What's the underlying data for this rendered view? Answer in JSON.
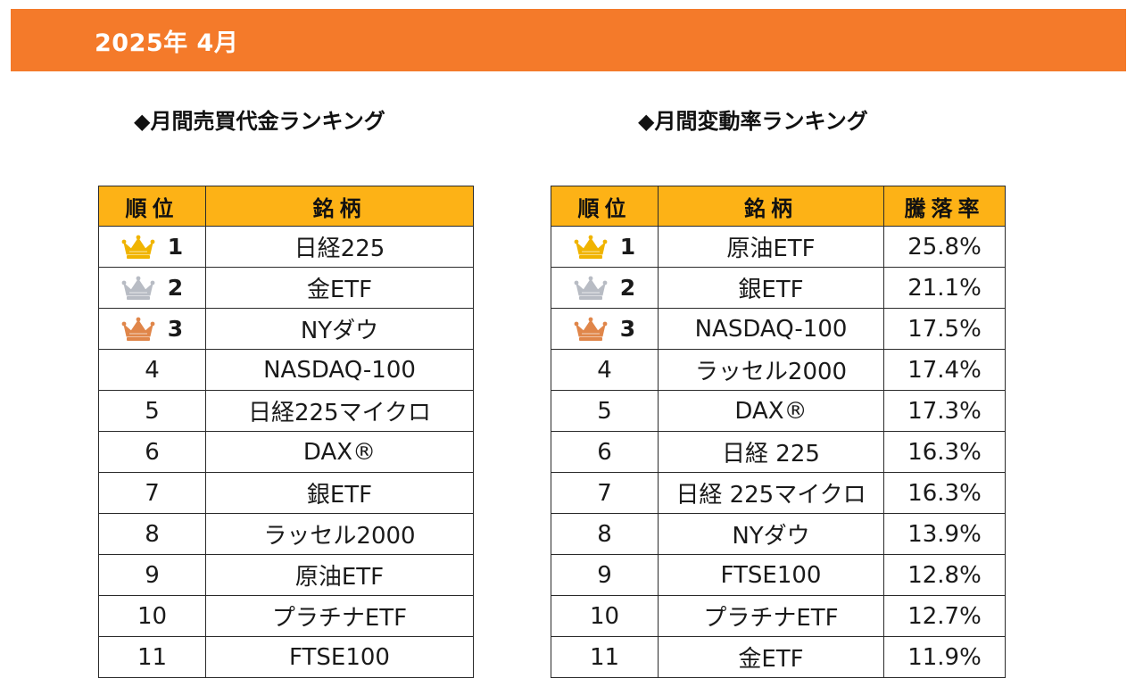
{
  "banner": {
    "title": "2025年 4月",
    "color": "#f47a2a"
  },
  "colors": {
    "header": "#fdb216",
    "gold": "#f0b400",
    "silver": "#b8bcc4",
    "bronze": "#e0864a"
  },
  "trading_value": {
    "title": "◆月間売買代金ランキング",
    "headers": {
      "rank": "順位",
      "name": "銘柄"
    },
    "rows": [
      {
        "rank": "1",
        "name": "日経225",
        "crown": "gold"
      },
      {
        "rank": "2",
        "name": "金ETF",
        "crown": "silver"
      },
      {
        "rank": "3",
        "name": "NYダウ",
        "crown": "bronze"
      },
      {
        "rank": "4",
        "name": "NASDAQ-100"
      },
      {
        "rank": "5",
        "name": "日経225マイクロ"
      },
      {
        "rank": "6",
        "name": "DAX®"
      },
      {
        "rank": "7",
        "name": "銀ETF"
      },
      {
        "rank": "8",
        "name": "ラッセル2000"
      },
      {
        "rank": "9",
        "name": "原油ETF"
      },
      {
        "rank": "10",
        "name": "プラチナETF"
      },
      {
        "rank": "11",
        "name": "FTSE100"
      }
    ]
  },
  "change_rate": {
    "title": "◆月間変動率ランキング",
    "headers": {
      "rank": "順位",
      "name": "銘柄",
      "rate": "騰落率"
    },
    "rows": [
      {
        "rank": "1",
        "name": "原油ETF",
        "rate": "25.8%",
        "crown": "gold"
      },
      {
        "rank": "2",
        "name": "銀ETF",
        "rate": "21.1%",
        "crown": "silver"
      },
      {
        "rank": "3",
        "name": "NASDAQ-100",
        "rate": "17.5%",
        "crown": "bronze"
      },
      {
        "rank": "4",
        "name": "ラッセル2000",
        "rate": "17.4%"
      },
      {
        "rank": "5",
        "name": "DAX®",
        "rate": "17.3%"
      },
      {
        "rank": "6",
        "name": "日経 225",
        "rate": "16.3%"
      },
      {
        "rank": "7",
        "name": "日経 225マイクロ",
        "rate": "16.3%"
      },
      {
        "rank": "8",
        "name": "NYダウ",
        "rate": "13.9%"
      },
      {
        "rank": "9",
        "name": "FTSE100",
        "rate": "12.8%"
      },
      {
        "rank": "10",
        "name": "プラチナETF",
        "rate": "12.7%"
      },
      {
        "rank": "11",
        "name": "金ETF",
        "rate": "11.9%"
      }
    ]
  }
}
